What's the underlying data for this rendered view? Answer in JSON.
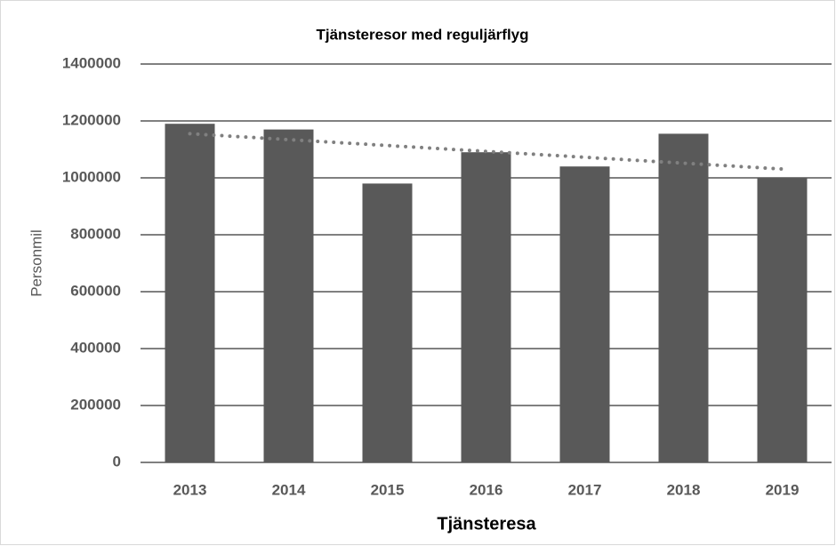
{
  "chart_data": {
    "type": "bar",
    "title": "Tjänsteresor med reguljärflyg",
    "x_label": "Tjänsteresa",
    "y_label": "Personmil",
    "categories": [
      "2013",
      "2014",
      "2015",
      "2016",
      "2017",
      "2018",
      "2019"
    ],
    "values": [
      1190000,
      1170000,
      980000,
      1090000,
      1040000,
      1155000,
      1000000
    ],
    "color": "#595959",
    "trendline": {
      "start": 1155000,
      "end": 1031000,
      "color": "#808080"
    },
    "ylim": [
      0,
      1400000
    ],
    "yticks": [
      0,
      200000,
      400000,
      600000,
      800000,
      1000000,
      1200000,
      1400000
    ],
    "grid": true
  }
}
